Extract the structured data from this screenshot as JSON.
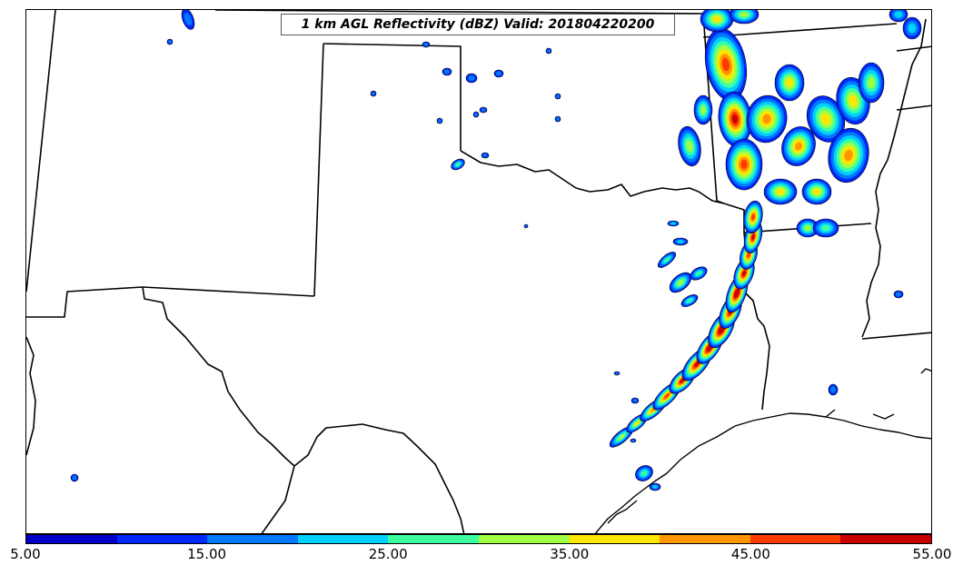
{
  "title": "1 km AGL Reflectivity (dBZ) Valid: 201804220200",
  "colorbar": {
    "colors": [
      "#0000c8",
      "#0028ff",
      "#0078ff",
      "#00d2ff",
      "#3cffa0",
      "#a0ff46",
      "#ffe600",
      "#ff9600",
      "#ff3c00",
      "#c80000"
    ],
    "ticks": [
      "5.00",
      "15.00",
      "25.00",
      "35.00",
      "45.00",
      "55.00"
    ],
    "range": [
      5,
      55
    ]
  },
  "icons": [
    "state-boundary-lines",
    "coastline",
    "reflectivity-echoes"
  ]
}
